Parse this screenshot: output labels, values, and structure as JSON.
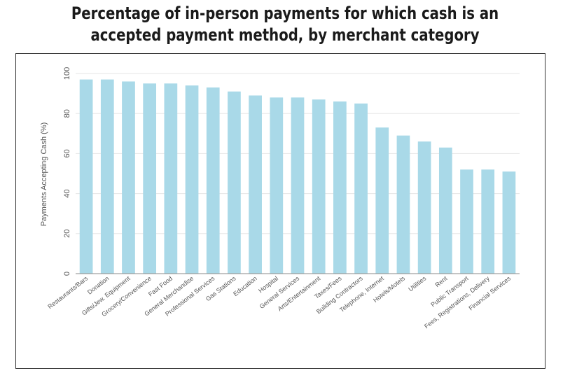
{
  "chart_data": {
    "type": "bar",
    "title_line1": "Percentage of in-person payments for which cash is an",
    "title_line2": "accepted payment method, by merchant category",
    "ylabel": "Payments Accepting Cash (%)",
    "xlabel": "",
    "ylim": [
      0,
      100
    ],
    "yticks": [
      0,
      20,
      40,
      60,
      80,
      100
    ],
    "grid": true,
    "bar_color": "#a9d9e8",
    "categories": [
      "Restaurants/Bars",
      "Donation",
      "Gifts/Jew. Equipment",
      "Grocery/Convenience",
      "Fast Food",
      "General Merchandise",
      "Professional Services",
      "Gas Stations",
      "Education",
      "Hospital",
      "General Services",
      "Arts/Entertainment",
      "Taxes/Fees",
      "Building Contractors",
      "Telephone, Internet",
      "Hotels/Motels",
      "Utilities",
      "Rent",
      "Public Transport",
      "Fees, Registrations, Delivery",
      "Financial Services"
    ],
    "values": [
      97,
      97,
      96,
      95,
      95,
      94,
      93,
      91,
      89,
      88,
      88,
      87,
      86,
      85,
      73,
      69,
      66,
      63,
      52,
      52,
      51
    ]
  }
}
